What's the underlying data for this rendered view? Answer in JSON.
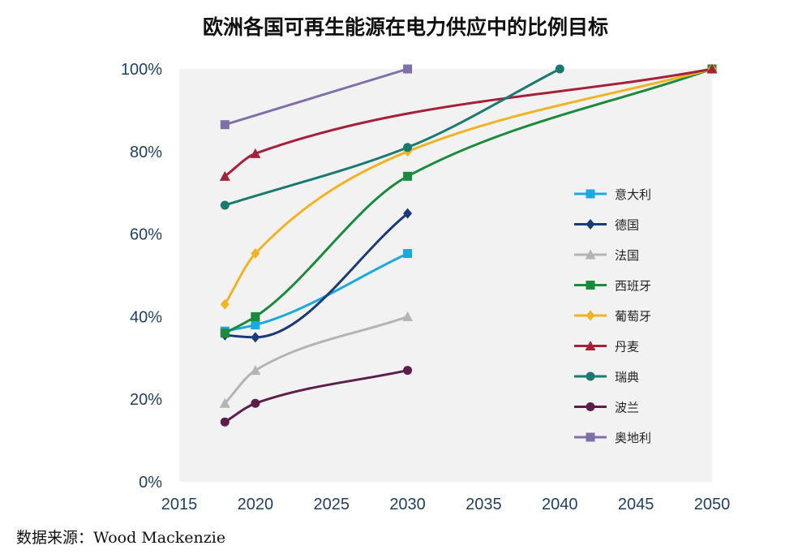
{
  "title": "欧洲各国可再生能源在电力供应中的比例目标",
  "source": "数据来源：Wood Mackenzie",
  "chart_data": {
    "type": "line",
    "title": "欧洲各国可再生能源在电力供应中的比例目标",
    "xlabel": "",
    "ylabel": "",
    "xlim": [
      2015,
      2050
    ],
    "ylim": [
      0,
      100
    ],
    "x_ticks": [
      2015,
      2020,
      2025,
      2030,
      2035,
      2040,
      2045,
      2050
    ],
    "y_ticks": [
      0,
      20,
      40,
      60,
      80,
      100
    ],
    "y_tick_suffix": "%",
    "grid": false,
    "legend_position": "right",
    "plot_background": "#f2f2f2",
    "series": [
      {
        "name": "意大利",
        "color": "#1ea8e0",
        "marker": "square",
        "points": [
          [
            2018,
            36.5
          ],
          [
            2020,
            38
          ],
          [
            2030,
            55.3
          ]
        ]
      },
      {
        "name": "德国",
        "color": "#1b3a7a",
        "marker": "diamond",
        "points": [
          [
            2018,
            35.5
          ],
          [
            2020,
            35
          ],
          [
            2030,
            65
          ]
        ]
      },
      {
        "name": "法国",
        "color": "#b4b4b4",
        "marker": "triangle",
        "points": [
          [
            2018,
            19
          ],
          [
            2020,
            27
          ],
          [
            2030,
            40
          ]
        ]
      },
      {
        "name": "西班牙",
        "color": "#1a8a3c",
        "marker": "square",
        "points": [
          [
            2018,
            36
          ],
          [
            2020,
            40
          ],
          [
            2030,
            74
          ],
          [
            2050,
            100
          ]
        ]
      },
      {
        "name": "葡萄牙",
        "color": "#f0b323",
        "marker": "diamond",
        "points": [
          [
            2018,
            43
          ],
          [
            2020,
            55.3
          ],
          [
            2030,
            80
          ],
          [
            2050,
            100
          ]
        ]
      },
      {
        "name": "丹麦",
        "color": "#a6203a",
        "marker": "triangle",
        "points": [
          [
            2018,
            74
          ],
          [
            2020,
            79.5
          ],
          [
            2050,
            100
          ]
        ]
      },
      {
        "name": "瑞典",
        "color": "#1b7a70",
        "marker": "circle",
        "points": [
          [
            2018,
            67
          ],
          [
            2030,
            81
          ],
          [
            2040,
            100
          ]
        ]
      },
      {
        "name": "波兰",
        "color": "#5c1f4a",
        "marker": "circle",
        "points": [
          [
            2018,
            14.5
          ],
          [
            2020,
            19
          ],
          [
            2030,
            27
          ]
        ]
      },
      {
        "name": "奥地利",
        "color": "#8070a8",
        "marker": "square",
        "points": [
          [
            2018,
            86.5
          ],
          [
            2030,
            100
          ]
        ]
      }
    ]
  }
}
